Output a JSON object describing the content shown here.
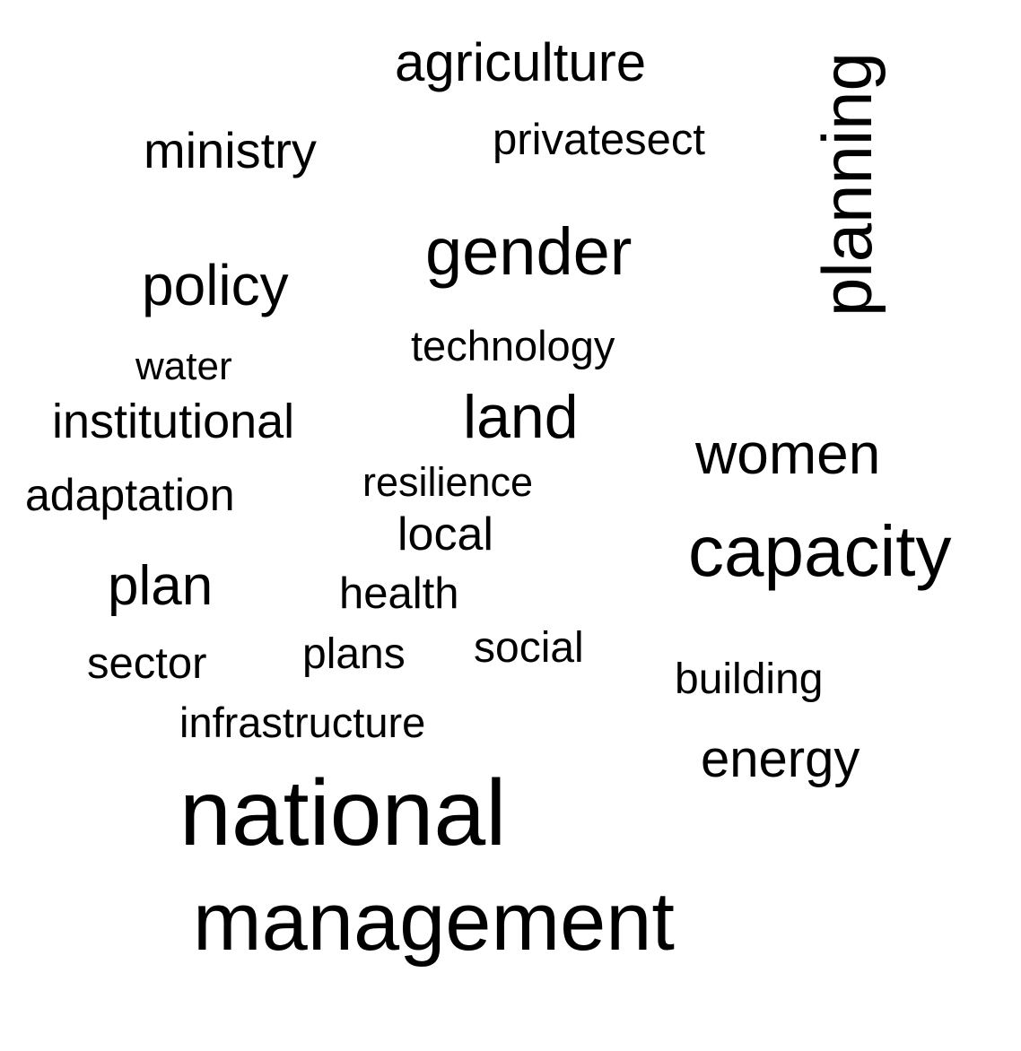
{
  "word_cloud": {
    "text_color": "#000000",
    "background_color": "#ffffff",
    "words": {
      "agriculture": "agriculture",
      "ministry": "ministry",
      "privatesect": "privatesect",
      "planning": "planning",
      "gender": "gender",
      "policy": "policy",
      "technology": "technology",
      "water": "water",
      "institutional": "institutional",
      "land": "land",
      "women": "women",
      "resilience": "resilience",
      "adaptation": "adaptation",
      "local": "local",
      "capacity": "capacity",
      "plan": "plan",
      "health": "health",
      "social": "social",
      "plans": "plans",
      "sector": "sector",
      "building": "building",
      "infrastructure": "infrastructure",
      "energy": "energy",
      "national": "national",
      "management": "management"
    }
  }
}
